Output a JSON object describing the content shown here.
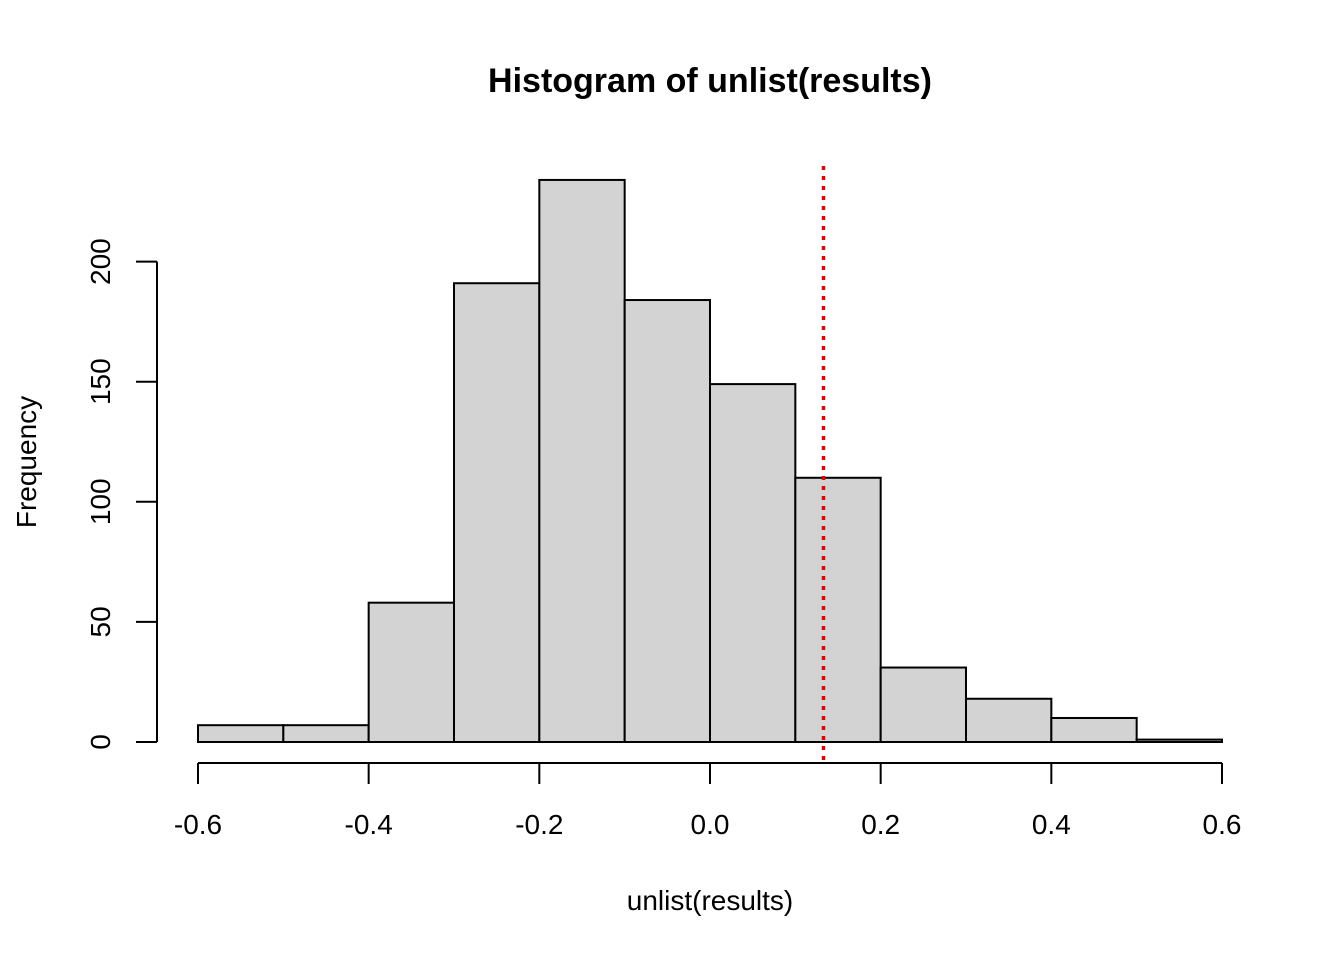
{
  "chart_data": {
    "type": "bar",
    "title": "Histogram of unlist(results)",
    "xlabel": "unlist(results)",
    "ylabel": "Frequency",
    "bins": [
      {
        "x0": -0.6,
        "x1": -0.5,
        "count": 7
      },
      {
        "x0": -0.5,
        "x1": -0.4,
        "count": 7
      },
      {
        "x0": -0.4,
        "x1": -0.3,
        "count": 58
      },
      {
        "x0": -0.3,
        "x1": -0.2,
        "count": 191
      },
      {
        "x0": -0.2,
        "x1": -0.1,
        "count": 234
      },
      {
        "x0": -0.1,
        "x1": 0.0,
        "count": 184
      },
      {
        "x0": 0.0,
        "x1": 0.1,
        "count": 149
      },
      {
        "x0": 0.1,
        "x1": 0.2,
        "count": 110
      },
      {
        "x0": 0.2,
        "x1": 0.3,
        "count": 31
      },
      {
        "x0": 0.3,
        "x1": 0.4,
        "count": 18
      },
      {
        "x0": 0.4,
        "x1": 0.5,
        "count": 10
      },
      {
        "x0": 0.5,
        "x1": 0.6,
        "count": 1
      }
    ],
    "xlim": [
      -0.6,
      0.6
    ],
    "ylim": [
      0,
      240
    ],
    "x_ticks": [
      -0.6,
      -0.4,
      -0.2,
      0.0,
      0.2,
      0.4,
      0.6
    ],
    "x_tick_labels": [
      "-0.6",
      "-0.4",
      "-0.2",
      "0.0",
      "0.2",
      "0.4",
      "0.6"
    ],
    "y_ticks": [
      0,
      50,
      100,
      150,
      200
    ],
    "y_tick_labels": [
      "0",
      "50",
      "100",
      "150",
      "200"
    ],
    "reference_line": {
      "x": 0.133,
      "style": "dotted",
      "color": "#dd0000"
    },
    "bar_color": "#d3d3d3",
    "grid": false
  }
}
